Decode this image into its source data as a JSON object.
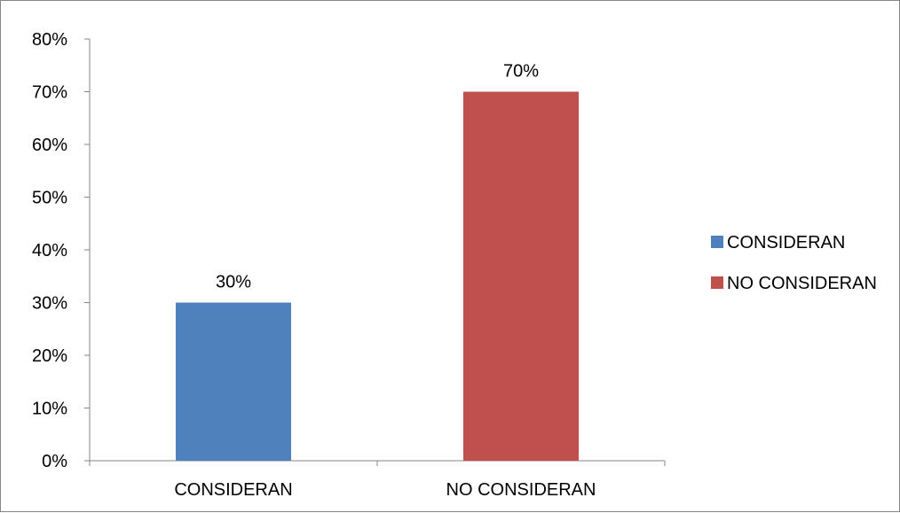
{
  "chart_data": {
    "type": "bar",
    "title": "",
    "xlabel": "",
    "ylabel": "",
    "categories": [
      "CONSIDERAN",
      "NO CONSIDERAN"
    ],
    "values": [
      30,
      70
    ],
    "value_labels": [
      "30%",
      "70%"
    ],
    "colors": [
      "#4f81bd",
      "#c0504d"
    ],
    "ylim": [
      0,
      80
    ],
    "y_ticks": [
      0,
      10,
      20,
      30,
      40,
      50,
      60,
      70,
      80
    ],
    "y_tick_labels": [
      "0%",
      "10%",
      "20%",
      "30%",
      "40%",
      "50%",
      "60%",
      "70%",
      "80%"
    ],
    "grid": false,
    "legend": {
      "position": "right",
      "entries": [
        {
          "label": "CONSIDERAN",
          "color": "#4f81bd"
        },
        {
          "label": "NO CONSIDERAN",
          "color": "#c0504d"
        }
      ]
    }
  }
}
